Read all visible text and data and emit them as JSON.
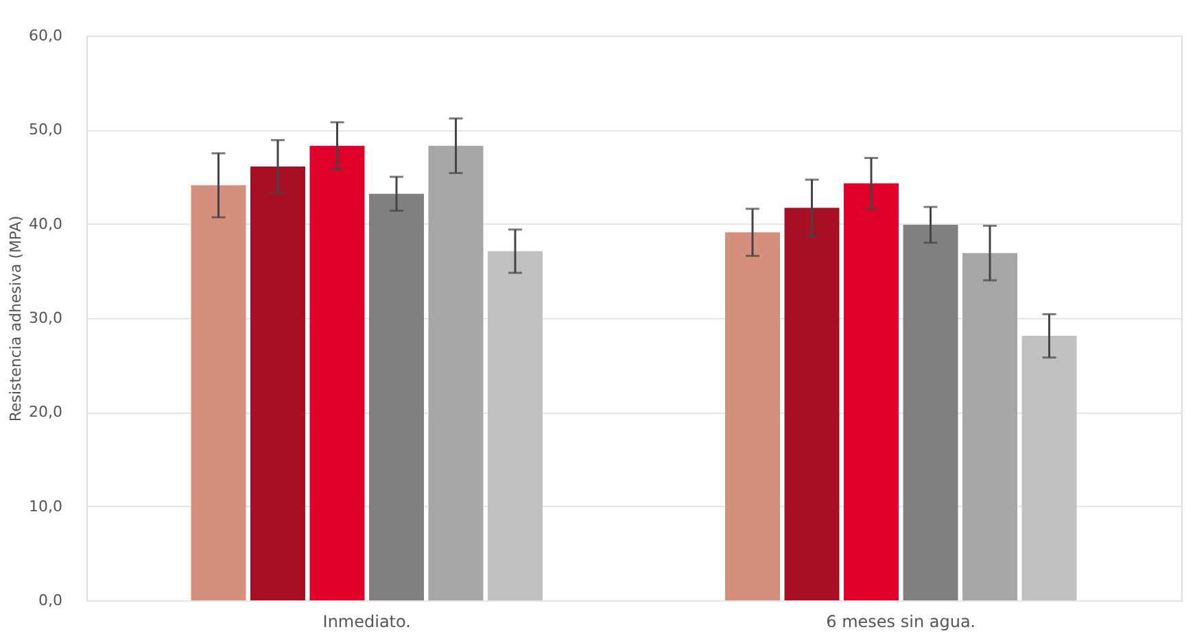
{
  "chart_data": {
    "type": "bar",
    "ylabel": "Resistencia adhesiva (MPA)",
    "categories": [
      "Inmediato.",
      "6 meses sin agua."
    ],
    "series": [
      {
        "color": "#d4907c",
        "values": [
          44.1,
          39.1
        ],
        "errors": [
          3.4,
          2.5
        ]
      },
      {
        "color": "#a80f24",
        "values": [
          46.1,
          41.7
        ],
        "errors": [
          2.8,
          3.0
        ]
      },
      {
        "color": "#e0002a",
        "values": [
          48.3,
          44.3
        ],
        "errors": [
          2.5,
          2.7
        ]
      },
      {
        "color": "#808080",
        "values": [
          43.2,
          39.9
        ],
        "errors": [
          1.8,
          1.9
        ]
      },
      {
        "color": "#a6a6a6",
        "values": [
          48.3,
          36.9
        ],
        "errors": [
          2.9,
          2.9
        ]
      },
      {
        "color": "#c0c0c0",
        "values": [
          37.1,
          28.1
        ],
        "errors": [
          2.3,
          2.3
        ]
      }
    ],
    "ylim": [
      0,
      60
    ],
    "yticks": [
      {
        "value": 0,
        "label": "0,0"
      },
      {
        "value": 10,
        "label": "10,0"
      },
      {
        "value": 20,
        "label": "20,0"
      },
      {
        "value": 30,
        "label": "30,0"
      },
      {
        "value": 40,
        "label": "40,0"
      },
      {
        "value": 50,
        "label": "50,0"
      },
      {
        "value": 60,
        "label": "60,0"
      }
    ],
    "grid": "y",
    "legend": false
  }
}
